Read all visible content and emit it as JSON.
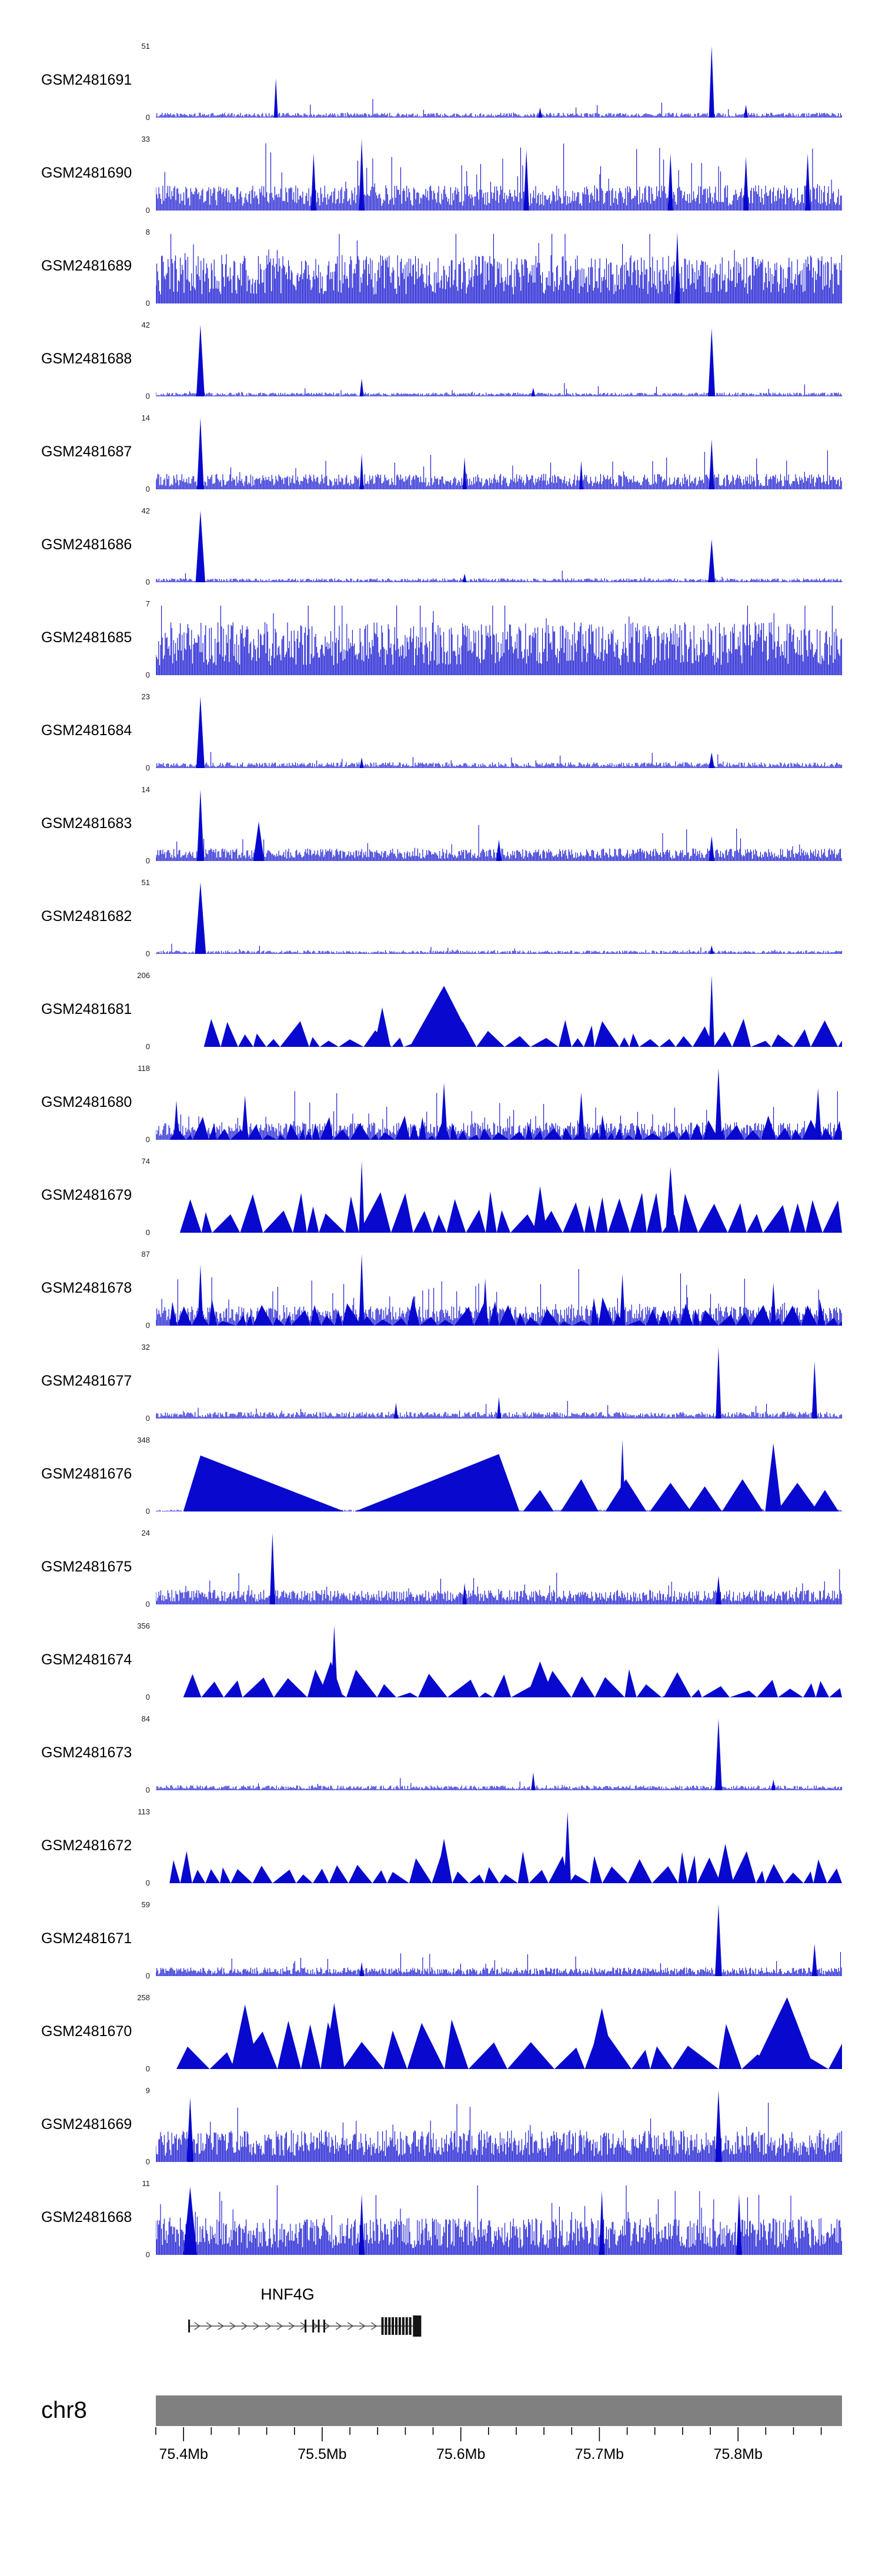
{
  "page": {
    "background": "#ffffff"
  },
  "colors": {
    "signal": "#0808CF",
    "gene": "#141414",
    "gene_line": "#4a4a4a",
    "ideogram": "#808080",
    "text": "#000000"
  },
  "chart_data": {
    "type": "area",
    "title": "",
    "region": {
      "chromosome": "chr8",
      "start_mb": 75.38,
      "end_mb": 75.875,
      "unit": "Mb"
    },
    "axis": {
      "major_ticks_mb": [
        75.4,
        75.5,
        75.6,
        75.7,
        75.8
      ],
      "tick_labels": [
        "75.4Mb",
        "75.5Mb",
        "75.6Mb",
        "75.7Mb",
        "75.8Mb"
      ],
      "minor_tick_step_mb": 0.02,
      "grid": false
    },
    "gene": {
      "name": "HNF4G",
      "strand": "+",
      "start_mb": 75.404,
      "end_mb": 75.5715,
      "small_exons_mb": [
        75.404,
        75.488,
        75.4935,
        75.4975,
        75.5015
      ],
      "dense_exons_mb": [
        75.5435,
        75.546,
        75.5485,
        75.551,
        75.5535,
        75.556,
        75.5585,
        75.561,
        75.5635
      ],
      "terminal_exon_mb": [
        75.5655,
        75.5715
      ],
      "chevron_start_mb": 75.41,
      "chevron_end_mb": 75.54,
      "chevron_step_mb": 0.0085
    },
    "tracks": [
      {
        "name": "GSM2481691",
        "ymax": 51,
        "ymin": 0,
        "style": "spike",
        "base": 0.05,
        "step": 1.8,
        "spikeProb": 0.03,
        "spikeMult": 3,
        "peaks": [
          {
            "x": 0.175,
            "h": 0.55,
            "w": 0.003
          },
          {
            "x": 0.81,
            "h": 1.0,
            "w": 0.004
          },
          {
            "x": 0.86,
            "h": 0.18,
            "w": 0.003
          },
          {
            "x": 0.56,
            "h": 0.14,
            "w": 0.003
          }
        ]
      },
      {
        "name": "GSM2481690",
        "ymax": 33,
        "ymin": 0,
        "style": "spike",
        "base": 0.26,
        "step": 1.7,
        "spikeProb": 0.08,
        "spikeMult": 2.2,
        "peaks": [
          {
            "x": 0.3,
            "h": 1.0,
            "w": 0.004
          },
          {
            "x": 0.23,
            "h": 0.8,
            "w": 0.004
          },
          {
            "x": 0.54,
            "h": 0.85,
            "w": 0.004
          },
          {
            "x": 0.75,
            "h": 0.8,
            "w": 0.004
          },
          {
            "x": 0.86,
            "h": 0.75,
            "w": 0.004
          },
          {
            "x": 0.95,
            "h": 0.8,
            "w": 0.004
          }
        ]
      },
      {
        "name": "GSM2481689",
        "ymax": 8,
        "ymin": 0,
        "style": "spike",
        "base": 0.5,
        "step": 1.6,
        "spikeProb": 0.05,
        "spikeMult": 1.2,
        "peaks": [
          {
            "x": 0.76,
            "h": 1.0,
            "w": 0.004
          }
        ]
      },
      {
        "name": "GSM2481688",
        "ymax": 42,
        "ymin": 0,
        "style": "spike",
        "base": 0.04,
        "step": 1.8,
        "spikeProb": 0.02,
        "spikeMult": 3,
        "peaks": [
          {
            "x": 0.065,
            "h": 1.0,
            "w": 0.006
          },
          {
            "x": 0.81,
            "h": 0.95,
            "w": 0.005
          },
          {
            "x": 0.3,
            "h": 0.25,
            "w": 0.003
          },
          {
            "x": 0.55,
            "h": 0.12,
            "w": 0.003
          }
        ]
      },
      {
        "name": "GSM2481687",
        "ymax": 14,
        "ymin": 0,
        "style": "spike",
        "base": 0.16,
        "step": 1.7,
        "spikeProb": 0.06,
        "spikeMult": 2.2,
        "peaks": [
          {
            "x": 0.065,
            "h": 1.0,
            "w": 0.005
          },
          {
            "x": 0.81,
            "h": 0.7,
            "w": 0.004
          },
          {
            "x": 0.3,
            "h": 0.5,
            "w": 0.003
          },
          {
            "x": 0.45,
            "h": 0.45,
            "w": 0.003
          },
          {
            "x": 0.62,
            "h": 0.4,
            "w": 0.003
          }
        ]
      },
      {
        "name": "GSM2481686",
        "ymax": 42,
        "ymin": 0,
        "style": "spike",
        "base": 0.04,
        "step": 1.8,
        "spikeProb": 0.02,
        "spikeMult": 3,
        "peaks": [
          {
            "x": 0.065,
            "h": 1.0,
            "w": 0.007
          },
          {
            "x": 0.81,
            "h": 0.6,
            "w": 0.005
          },
          {
            "x": 0.45,
            "h": 0.12,
            "w": 0.003
          }
        ]
      },
      {
        "name": "GSM2481685",
        "ymax": 7,
        "ymin": 0,
        "style": "spike",
        "base": 0.55,
        "step": 1.6,
        "spikeProb": 0.05,
        "spikeMult": 1.2,
        "peaks": []
      },
      {
        "name": "GSM2481684",
        "ymax": 23,
        "ymin": 0,
        "style": "spike",
        "base": 0.06,
        "step": 1.8,
        "spikeProb": 0.03,
        "spikeMult": 2.5,
        "peaks": [
          {
            "x": 0.065,
            "h": 1.0,
            "w": 0.006
          },
          {
            "x": 0.81,
            "h": 0.22,
            "w": 0.004
          },
          {
            "x": 0.3,
            "h": 0.15,
            "w": 0.003
          }
        ]
      },
      {
        "name": "GSM2481683",
        "ymax": 14,
        "ymin": 0,
        "style": "spike",
        "base": 0.13,
        "step": 1.7,
        "spikeProb": 0.05,
        "spikeMult": 2.3,
        "peaks": [
          {
            "x": 0.065,
            "h": 1.0,
            "w": 0.005
          },
          {
            "x": 0.15,
            "h": 0.55,
            "w": 0.008
          },
          {
            "x": 0.81,
            "h": 0.35,
            "w": 0.004
          },
          {
            "x": 0.5,
            "h": 0.3,
            "w": 0.004
          }
        ]
      },
      {
        "name": "GSM2481682",
        "ymax": 51,
        "ymin": 0,
        "style": "spike",
        "base": 0.035,
        "step": 1.8,
        "spikeProb": 0.02,
        "spikeMult": 2.5,
        "peaks": [
          {
            "x": 0.065,
            "h": 1.0,
            "w": 0.008
          },
          {
            "x": 0.81,
            "h": 0.12,
            "w": 0.003
          }
        ]
      },
      {
        "name": "GSM2481681",
        "ymax": 206,
        "ymin": 0,
        "style": "mountain",
        "start": 0.07,
        "minh": 0.08,
        "maxh": 0.4,
        "wmin": 14,
        "wmax": 50,
        "peaks": [
          {
            "x": 0.42,
            "h": 0.85,
            "wl": 0.05,
            "wr": 0.045
          },
          {
            "x": 0.81,
            "h": 1.0,
            "wl": 0.004,
            "wr": 0.004
          },
          {
            "x": 0.33,
            "h": 0.55,
            "wl": 0.012,
            "wr": 0.012
          }
        ]
      },
      {
        "name": "GSM2481680",
        "ymax": 118,
        "ymin": 0,
        "style": "mix",
        "start": 0.0,
        "minh": 0.06,
        "maxh": 0.35,
        "wmin": 10,
        "wmax": 35,
        "base": 0.18,
        "step": 1.7,
        "spikeProb": 0.1,
        "spikeMult": 2.2,
        "peaks": [
          {
            "x": 0.82,
            "h": 1.0,
            "w": 0.005
          },
          {
            "x": 0.42,
            "h": 0.8,
            "w": 0.005
          },
          {
            "x": 0.13,
            "h": 0.62,
            "w": 0.005
          },
          {
            "x": 0.62,
            "h": 0.66,
            "w": 0.005
          },
          {
            "x": 0.965,
            "h": 0.72,
            "w": 0.005
          },
          {
            "x": 0.03,
            "h": 0.55,
            "w": 0.004
          }
        ]
      },
      {
        "name": "GSM2481679",
        "ymax": 74,
        "ymin": 0,
        "style": "mountain",
        "start": 0.035,
        "minh": 0.25,
        "maxh": 0.58,
        "wmin": 18,
        "wmax": 55,
        "peaks": [
          {
            "x": 0.3,
            "h": 1.0,
            "wl": 0.004,
            "wr": 0.004
          },
          {
            "x": 0.75,
            "h": 0.92,
            "wl": 0.007,
            "wr": 0.007
          },
          {
            "x": 0.56,
            "h": 0.65,
            "wl": 0.01,
            "wr": 0.01
          }
        ]
      },
      {
        "name": "GSM2481678",
        "ymax": 87,
        "ymin": 0,
        "style": "mix",
        "start": 0.0,
        "minh": 0.06,
        "maxh": 0.4,
        "wmin": 10,
        "wmax": 35,
        "base": 0.2,
        "step": 1.7,
        "spikeProb": 0.1,
        "spikeMult": 2.2,
        "peaks": [
          {
            "x": 0.3,
            "h": 1.0,
            "w": 0.004
          },
          {
            "x": 0.065,
            "h": 0.85,
            "w": 0.004
          },
          {
            "x": 0.68,
            "h": 0.72,
            "w": 0.004
          },
          {
            "x": 0.48,
            "h": 0.66,
            "w": 0.004
          },
          {
            "x": 0.9,
            "h": 0.6,
            "w": 0.004
          }
        ]
      },
      {
        "name": "GSM2481677",
        "ymax": 32,
        "ymin": 0,
        "style": "spike",
        "base": 0.07,
        "step": 1.8,
        "spikeProb": 0.04,
        "spikeMult": 2.2,
        "peaks": [
          {
            "x": 0.82,
            "h": 1.0,
            "w": 0.004
          },
          {
            "x": 0.96,
            "h": 0.8,
            "w": 0.004
          },
          {
            "x": 0.5,
            "h": 0.3,
            "w": 0.003
          },
          {
            "x": 0.35,
            "h": 0.22,
            "w": 0.003
          }
        ]
      },
      {
        "name": "GSM2481676",
        "ymax": 348,
        "ymin": 0,
        "style": "spike",
        "base": 0.02,
        "step": 1.9,
        "spikeProb": 0.01,
        "spikeMult": 2,
        "peaks": [
          {
            "x": 0.065,
            "h": 0.78,
            "wl": 0.025,
            "wr": 0.21
          },
          {
            "x": 0.5,
            "h": 0.8,
            "wl": 0.21,
            "wr": 0.03
          },
          {
            "x": 0.56,
            "h": 0.3,
            "wl": 0.025,
            "wr": 0.02
          },
          {
            "x": 0.62,
            "h": 0.45,
            "wl": 0.03,
            "wr": 0.025
          },
          {
            "x": 0.68,
            "h": 1.0,
            "wl": 0.004,
            "wr": 0.004
          },
          {
            "x": 0.685,
            "h": 0.45,
            "wl": 0.03,
            "wr": 0.03
          },
          {
            "x": 0.75,
            "h": 0.4,
            "wl": 0.03,
            "wr": 0.03
          },
          {
            "x": 0.8,
            "h": 0.35,
            "wl": 0.025,
            "wr": 0.025
          },
          {
            "x": 0.855,
            "h": 0.45,
            "wl": 0.03,
            "wr": 0.03
          },
          {
            "x": 0.9,
            "h": 0.95,
            "wl": 0.012,
            "wr": 0.012
          },
          {
            "x": 0.935,
            "h": 0.4,
            "wl": 0.03,
            "wr": 0.03
          },
          {
            "x": 0.975,
            "h": 0.3,
            "wl": 0.02,
            "wr": 0.02
          }
        ]
      },
      {
        "name": "GSM2481675",
        "ymax": 24,
        "ymin": 0,
        "style": "spike",
        "base": 0.15,
        "step": 1.7,
        "spikeProb": 0.05,
        "spikeMult": 2,
        "peaks": [
          {
            "x": 0.17,
            "h": 1.0,
            "w": 0.004
          },
          {
            "x": 0.82,
            "h": 0.4,
            "w": 0.004
          },
          {
            "x": 0.45,
            "h": 0.3,
            "w": 0.003
          }
        ]
      },
      {
        "name": "GSM2481674",
        "ymax": 356,
        "ymin": 0,
        "style": "mountain",
        "start": 0.04,
        "minh": 0.06,
        "maxh": 0.42,
        "wmin": 16,
        "wmax": 60,
        "peaks": [
          {
            "x": 0.26,
            "h": 1.0,
            "wl": 0.005,
            "wr": 0.005
          },
          {
            "x": 0.255,
            "h": 0.5,
            "wl": 0.018,
            "wr": 0.018
          },
          {
            "x": 0.56,
            "h": 0.5,
            "wl": 0.02,
            "wr": 0.02
          },
          {
            "x": 0.76,
            "h": 0.35,
            "wl": 0.02,
            "wr": 0.02
          }
        ]
      },
      {
        "name": "GSM2481673",
        "ymax": 84,
        "ymin": 0,
        "style": "spike",
        "base": 0.05,
        "step": 1.8,
        "spikeProb": 0.03,
        "spikeMult": 2.2,
        "peaks": [
          {
            "x": 0.82,
            "h": 1.0,
            "w": 0.005
          },
          {
            "x": 0.55,
            "h": 0.25,
            "w": 0.003
          },
          {
            "x": 0.9,
            "h": 0.15,
            "w": 0.003
          }
        ]
      },
      {
        "name": "GSM2481672",
        "ymax": 113,
        "ymin": 0,
        "style": "mountain",
        "start": 0.0,
        "minh": 0.12,
        "maxh": 0.45,
        "wmin": 14,
        "wmax": 45,
        "peaks": [
          {
            "x": 0.6,
            "h": 1.0,
            "wl": 0.005,
            "wr": 0.005
          },
          {
            "x": 0.42,
            "h": 0.62,
            "wl": 0.012,
            "wr": 0.012
          },
          {
            "x": 0.83,
            "h": 0.55,
            "wl": 0.012,
            "wr": 0.012
          }
        ]
      },
      {
        "name": "GSM2481671",
        "ymax": 59,
        "ymin": 0,
        "style": "spike",
        "base": 0.09,
        "step": 1.7,
        "spikeProb": 0.04,
        "spikeMult": 2.2,
        "peaks": [
          {
            "x": 0.82,
            "h": 1.0,
            "w": 0.005
          },
          {
            "x": 0.96,
            "h": 0.45,
            "w": 0.004
          },
          {
            "x": 0.3,
            "h": 0.2,
            "w": 0.003
          }
        ]
      },
      {
        "name": "GSM2481670",
        "ymax": 258,
        "ymin": 0,
        "style": "mountain",
        "start": 0.03,
        "minh": 0.2,
        "maxh": 0.75,
        "wmin": 30,
        "wmax": 90,
        "peaks": [
          {
            "x": 0.92,
            "h": 1.0,
            "wl": 0.05,
            "wr": 0.04
          },
          {
            "x": 0.13,
            "h": 0.9,
            "wl": 0.02,
            "wr": 0.02
          },
          {
            "x": 0.26,
            "h": 0.92,
            "wl": 0.015,
            "wr": 0.015
          },
          {
            "x": 0.65,
            "h": 0.85,
            "wl": 0.02,
            "wr": 0.02
          }
        ]
      },
      {
        "name": "GSM2481669",
        "ymax": 9,
        "ymin": 0,
        "style": "spike",
        "base": 0.33,
        "step": 1.6,
        "spikeProb": 0.06,
        "spikeMult": 1.5,
        "peaks": [
          {
            "x": 0.82,
            "h": 1.0,
            "w": 0.005
          },
          {
            "x": 0.05,
            "h": 0.9,
            "w": 0.005
          }
        ]
      },
      {
        "name": "GSM2481668",
        "ymax": 11,
        "ymin": 0,
        "style": "spike",
        "base": 0.38,
        "step": 1.6,
        "spikeProb": 0.06,
        "spikeMult": 1.5,
        "peaks": [
          {
            "x": 0.05,
            "h": 0.95,
            "w": 0.01
          },
          {
            "x": 0.3,
            "h": 0.85,
            "w": 0.004
          },
          {
            "x": 0.65,
            "h": 0.9,
            "w": 0.004
          },
          {
            "x": 0.85,
            "h": 0.85,
            "w": 0.004
          }
        ]
      }
    ]
  }
}
